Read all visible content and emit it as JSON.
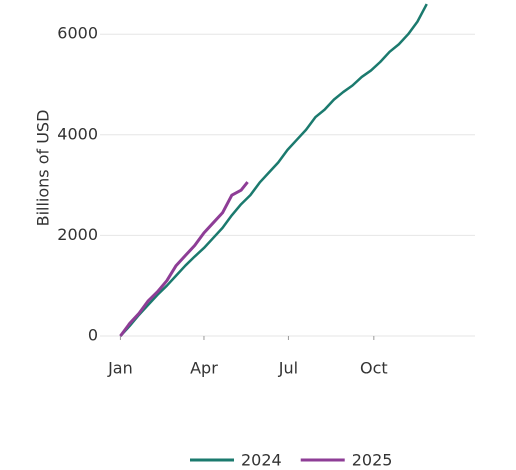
{
  "chart_data": {
    "type": "line",
    "y_label": "Billions of USD",
    "xlim": [
      -22,
      382
    ],
    "xticks": [
      {
        "value": 0,
        "label": "Jan"
      },
      {
        "value": 90,
        "label": "Apr"
      },
      {
        "value": 181,
        "label": "Jul"
      },
      {
        "value": 273,
        "label": "Oct"
      }
    ],
    "ylim": [
      0,
      6680
    ],
    "yticks": [
      0,
      2000,
      4000,
      6000
    ],
    "grid": true,
    "legend": "bottom",
    "series": [
      {
        "name": "2024",
        "color": "#1b7a6e",
        "x": [
          0,
          10,
          20,
          30,
          40,
          50,
          60,
          70,
          80,
          90,
          100,
          110,
          120,
          130,
          140,
          150,
          160,
          170,
          180,
          190,
          200,
          210,
          220,
          230,
          240,
          250,
          260,
          270,
          280,
          290,
          300,
          310,
          320,
          330
        ],
        "values": [
          0,
          200,
          420,
          620,
          820,
          1000,
          1200,
          1400,
          1580,
          1750,
          1950,
          2150,
          2400,
          2620,
          2800,
          3050,
          3250,
          3450,
          3700,
          3900,
          4100,
          4350,
          4500,
          4700,
          4850,
          4980,
          5150,
          5280,
          5450,
          5650,
          5800,
          6000,
          6250,
          6600
        ]
      },
      {
        "name": "2025",
        "color": "#8e3d96",
        "x": [
          0,
          10,
          20,
          30,
          40,
          50,
          60,
          70,
          80,
          90,
          100,
          110,
          120,
          130,
          137
        ],
        "values": [
          0,
          250,
          450,
          700,
          880,
          1100,
          1400,
          1600,
          1800,
          2050,
          2250,
          2450,
          2800,
          2900,
          3060
        ]
      }
    ]
  }
}
